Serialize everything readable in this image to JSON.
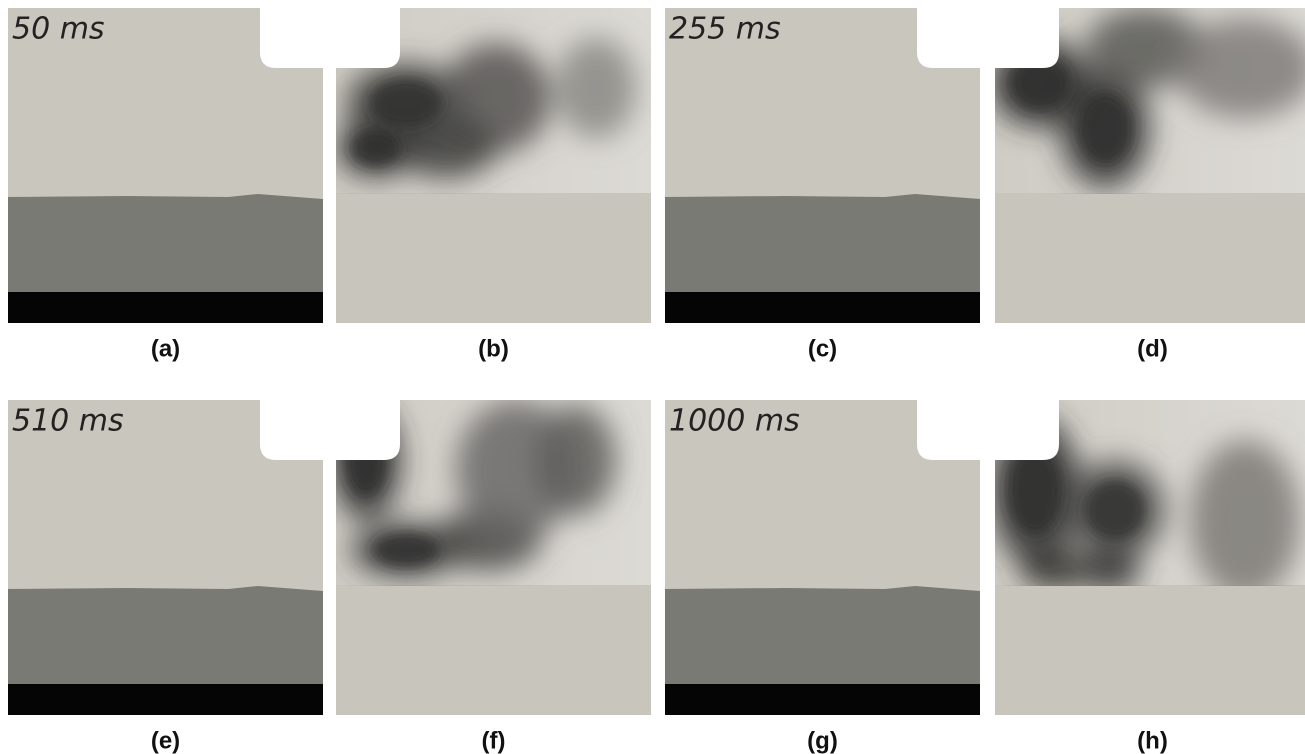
{
  "panels": [
    {
      "label": "(a)",
      "time": "50 ms"
    },
    {
      "label": "(b)"
    },
    {
      "label": "(c)",
      "time": "255 ms"
    },
    {
      "label": "(d)"
    },
    {
      "label": "(e)",
      "time": "510 ms"
    },
    {
      "label": "(f)"
    },
    {
      "label": "(g)",
      "time": "1000 ms"
    },
    {
      "label": "(h)"
    }
  ]
}
